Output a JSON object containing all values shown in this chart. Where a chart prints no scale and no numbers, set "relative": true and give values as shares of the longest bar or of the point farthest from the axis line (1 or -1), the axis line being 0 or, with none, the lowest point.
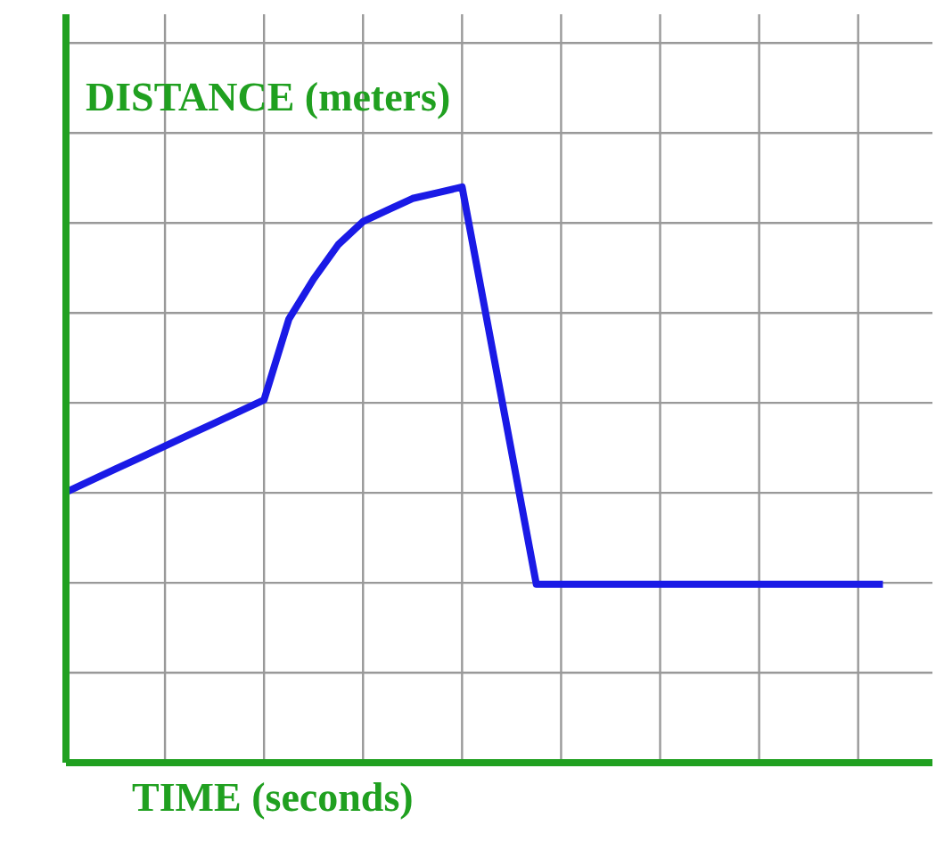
{
  "chart_data": {
    "type": "line",
    "relative": true,
    "grid": true,
    "xlabel": "TIME (seconds)",
    "ylabel": "DISTANCE (meters)",
    "categories": [
      null,
      null,
      null,
      null,
      null,
      null,
      null,
      null,
      null,
      null,
      null,
      null,
      null,
      null,
      null,
      null,
      null,
      null,
      null,
      null,
      null,
      null,
      null,
      null,
      null,
      null,
      null,
      null,
      null,
      null,
      null,
      null,
      null,
      null,
      null,
      null
    ],
    "series": [
      {
        "color": "#1a1ae6",
        "values": [
          0.47,
          0.49,
          0.51,
          0.53,
          0.55,
          0.57,
          0.59,
          0.61,
          0.63,
          0.77,
          0.84,
          0.9,
          0.94,
          0.96,
          0.98,
          0.99,
          1,
          0.77,
          0.54,
          0.31,
          0.31,
          0.31,
          0.31,
          0.31,
          0.31,
          0.31,
          0.31,
          0.31,
          0.31,
          0.31,
          0.31,
          0.31,
          0.31,
          0.31,
          null,
          null
        ]
      }
    ]
  }
}
